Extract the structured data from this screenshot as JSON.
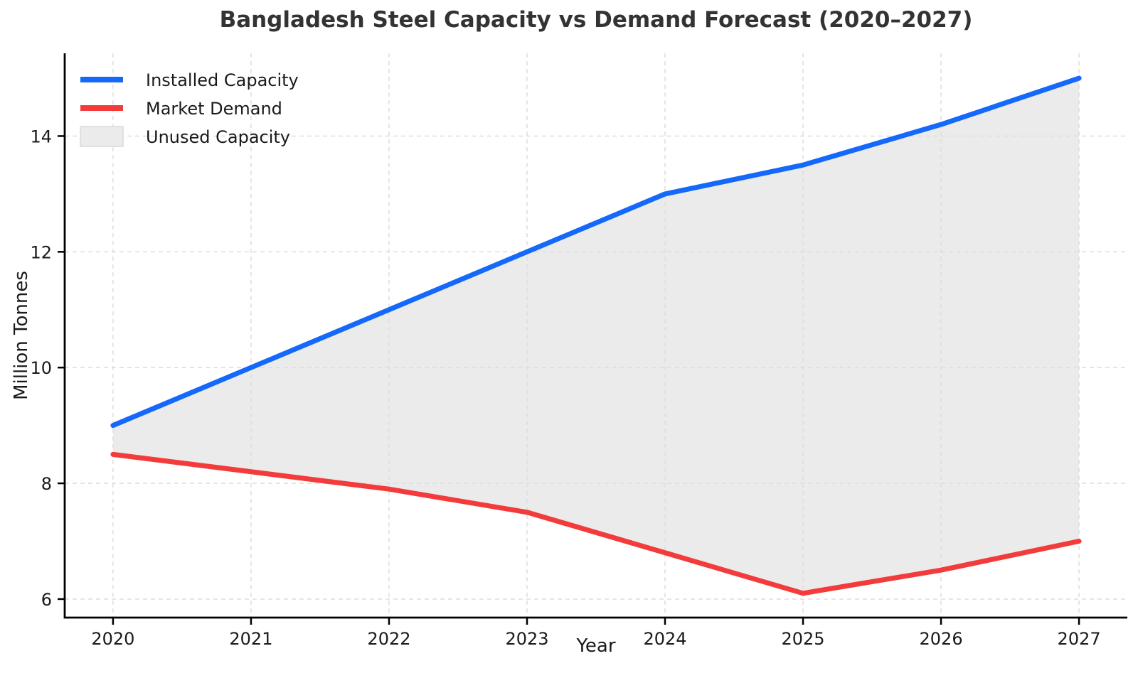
{
  "title": "Bangladesh Steel Capacity vs Demand Forecast (2020–2027)",
  "axes": {
    "x_label": "Year",
    "y_label": "Million Tonnes",
    "x_tick_labels": [
      "2020",
      "2021",
      "2022",
      "2023",
      "2024",
      "2025",
      "2026",
      "2027"
    ],
    "y_tick_labels": [
      "6",
      "8",
      "10",
      "12",
      "14"
    ]
  },
  "legend": {
    "items": [
      {
        "label": "Installed Capacity",
        "swatch": "line",
        "color": "#1468fa"
      },
      {
        "label": "Market Demand",
        "swatch": "line",
        "color": "#f43b3c"
      },
      {
        "label": "Unused Capacity",
        "swatch": "patch",
        "color": "#ebebeb"
      }
    ]
  },
  "colors": {
    "capacity_line": "#1468fa",
    "demand_line": "#f43b3c",
    "unused_fill": "#ebebeb",
    "unused_edge": "#d9d9d9",
    "grid": "#dedede",
    "spine": "#000000",
    "title_text": "#333333",
    "tick_text": "#1a1a1a"
  },
  "chart_data": {
    "type": "line",
    "title": "Bangladesh Steel Capacity vs Demand Forecast (2020–2027)",
    "xlabel": "Year",
    "ylabel": "Million Tonnes",
    "x": [
      2020,
      2021,
      2022,
      2023,
      2024,
      2025,
      2026,
      2027
    ],
    "series": [
      {
        "name": "Installed Capacity",
        "values": [
          9.0,
          10.0,
          11.0,
          12.0,
          13.0,
          13.5,
          14.2,
          15.0
        ],
        "color": "#1468fa"
      },
      {
        "name": "Market Demand",
        "values": [
          8.5,
          8.2,
          7.9,
          7.5,
          6.8,
          6.1,
          6.5,
          7.0
        ],
        "color": "#f43b3c"
      }
    ],
    "area_between": {
      "name": "Unused Capacity",
      "upper_series": "Installed Capacity",
      "lower_series": "Market Demand",
      "fill": "#ebebeb"
    },
    "x_ticks": [
      2020,
      2021,
      2022,
      2023,
      2024,
      2025,
      2026,
      2027
    ],
    "y_ticks": [
      6,
      8,
      10,
      12,
      14
    ],
    "xlim": [
      2019.65,
      2027.35
    ],
    "ylim": [
      5.68,
      15.43
    ],
    "grid": true,
    "grid_style": "dashed",
    "legend_position": "upper left"
  }
}
